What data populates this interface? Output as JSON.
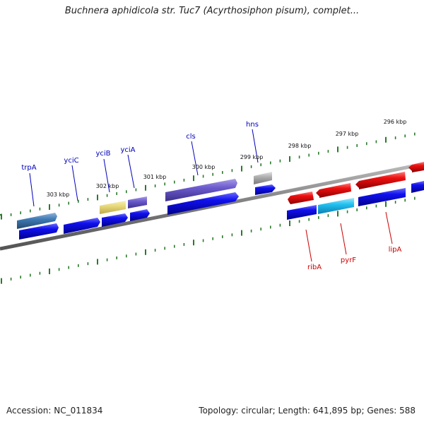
{
  "title": "Buchnera aphidicola str. Tuc7 (Acyrthosiphon pisum), complet...",
  "footer": {
    "accession": "Accession: NC_011834",
    "summary": "Topology: circular; Length: 641,895 bp; Genes: 588"
  },
  "scale_labels": [
    "303 kbp",
    "302 kbp",
    "301 kbp",
    "300 kbp",
    "299 kbp",
    "298 kbp",
    "297 kbp",
    "296 kbp"
  ],
  "gene_labels": {
    "top": [
      "trpA",
      "yciC",
      "yciB",
      "yciA",
      "cls",
      "hns"
    ],
    "bottom": [
      "ribA",
      "pyrF",
      "lipA"
    ]
  },
  "colors": {
    "cds_forward": "#0000ee",
    "cds_reverse": "#ee0000",
    "label_top": "#0000bb",
    "label_bottom": "#cc0000",
    "backbone": "#808080",
    "tick": "#2a7a2a"
  }
}
